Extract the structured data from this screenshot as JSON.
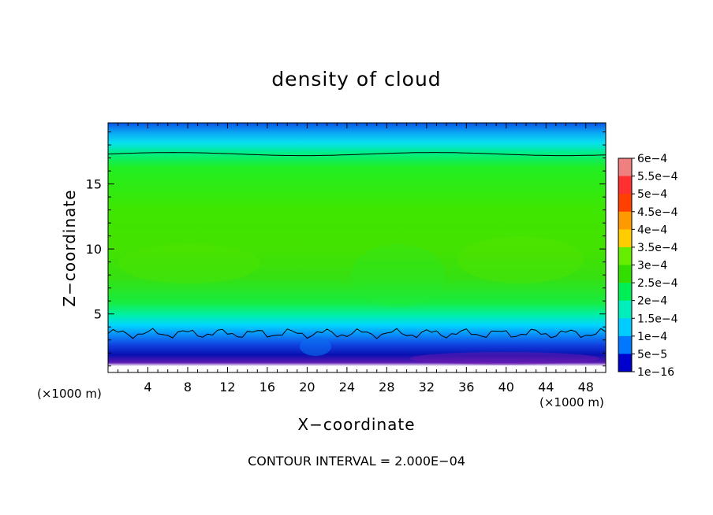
{
  "chart_data": {
    "type": "heatmap",
    "title": "density of cloud",
    "xlabel": "X−coordinate",
    "ylabel": "Z−coordinate",
    "x_unit_left": "(×1000 m)",
    "x_unit_right": "(×1000 m)",
    "note": "CONTOUR INTERVAL = 2.000E−04",
    "xlim": [
      0,
      50
    ],
    "ylim": [
      0.5,
      19.7
    ],
    "xticks": [
      "4",
      "8",
      "12",
      "16",
      "20",
      "24",
      "28",
      "32",
      "36",
      "40",
      "44",
      "48"
    ],
    "yticks": [
      "5",
      "10",
      "15"
    ],
    "colorbar": {
      "labels": [
        "6e−4",
        "5.5e−4",
        "5e−4",
        "4.5e−4",
        "4e−4",
        "3.5e−4",
        "3e−4",
        "2.5e−4",
        "2e−4",
        "1.5e−4",
        "1e−4",
        "5e−5",
        "1e−16"
      ],
      "values": [
        0.0006,
        0.00055,
        0.0005,
        0.00045,
        0.0004,
        0.00035,
        0.0003,
        0.00025,
        0.0002,
        0.00015,
        0.0001,
        5e-05,
        1e-16
      ],
      "colors": [
        "#f08080",
        "#ff3030",
        "#ff4000",
        "#ff9900",
        "#ffcc00",
        "#66ee00",
        "#33dd00",
        "#00ee55",
        "#00eebb",
        "#00ccff",
        "#0077ff",
        "#0000cc",
        "#7722aa"
      ]
    },
    "vertical_profile": {
      "z": [
        0.5,
        1.0,
        1.5,
        2.0,
        2.5,
        3.0,
        3.5,
        4.0,
        5.0,
        6.0,
        8.0,
        10.0,
        12.0,
        14.0,
        16.0,
        17.0,
        17.5,
        18.0,
        18.5,
        19.0,
        19.7
      ],
      "density": [
        0,
        2e-05,
        5e-05,
        8e-05,
        0.00011,
        0.00015,
        0.00018,
        0.0002,
        0.00023,
        0.00027,
        0.00029,
        0.0003,
        0.00028,
        0.00027,
        0.00025,
        0.00022,
        0.0002,
        0.00018,
        0.00016,
        0.00013,
        0.0001
      ]
    },
    "contour_lines_z": [
      3.5,
      17.3
    ]
  }
}
